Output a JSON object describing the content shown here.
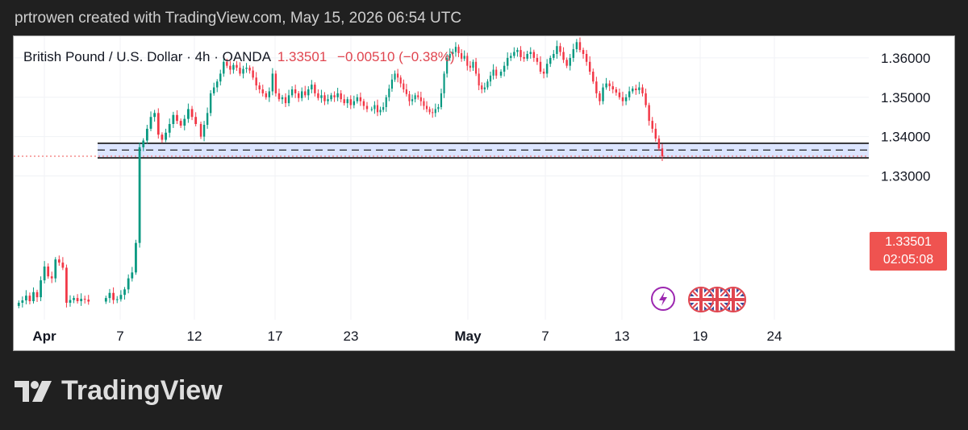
{
  "caption": "prtrowen created with TradingView.com, May 15, 2026 06:54 UTC",
  "header": {
    "symbol": "British Pound / U.S. Dollar · 4h · OANDA",
    "last_price": "1.33501",
    "change": "−0.00510 (−0.38%)"
  },
  "price_tag": {
    "price": "1.33501",
    "countdown": "02:05:08"
  },
  "brand": {
    "name": "TradingView"
  },
  "colors": {
    "up": "#089981",
    "down": "#f23645",
    "zone_fill": "#d6e0ff",
    "last_price_line": "#ef5350"
  },
  "icons": [
    "lightning-event-icon",
    "uk-flag-event-icon"
  ],
  "chart_data": {
    "type": "candlestick",
    "title": "British Pound / U.S. Dollar · 4h · OANDA",
    "ylim": [
      1.2935,
      1.3655
    ],
    "yticks": [
      "1.36000",
      "1.35000",
      "1.34000",
      "1.33000"
    ],
    "ytick_values": [
      1.36,
      1.35,
      1.34,
      1.33
    ],
    "xticks": [
      {
        "label": "Apr",
        "bold": true
      },
      {
        "label": "7",
        "bold": false
      },
      {
        "label": "12",
        "bold": false
      },
      {
        "label": "17",
        "bold": false
      },
      {
        "label": "23",
        "bold": false
      },
      {
        "label": "May",
        "bold": true
      },
      {
        "label": "7",
        "bold": false
      },
      {
        "label": "13",
        "bold": false
      },
      {
        "label": "19",
        "bold": false
      },
      {
        "label": "24",
        "bold": false
      }
    ],
    "support_zone": {
      "top": 1.3383,
      "mid": 1.3366,
      "bottom": 1.3346
    },
    "last_price": 1.33501,
    "grid": true,
    "series": [
      {
        "segment": "early-april",
        "closes": [
          1.2978,
          1.2984,
          1.2996,
          1.2982,
          1.3005,
          1.2992,
          1.3035,
          1.307,
          1.3045,
          1.304,
          1.3088,
          1.308,
          1.3067,
          1.2978,
          1.2985,
          1.299,
          1.2982,
          1.2988,
          1.2986,
          1.2981
        ]
      },
      {
        "segment": "gap-rally",
        "closes": [
          1.299,
          1.3003,
          1.2985,
          1.2987,
          1.2998,
          1.3012,
          1.304,
          1.3055,
          1.313,
          1.3373,
          1.339,
          1.342,
          1.345,
          1.346,
          1.3405,
          1.3392,
          1.341,
          1.3432,
          1.3455,
          1.344,
          1.3428,
          1.3445,
          1.347,
          1.345,
          1.3432
        ]
      },
      {
        "segment": "mid-april",
        "closes": [
          1.34,
          1.343,
          1.346,
          1.351,
          1.3525,
          1.354,
          1.356,
          1.359,
          1.358,
          1.357,
          1.3582,
          1.3575,
          1.356,
          1.3572,
          1.3575,
          1.3568,
          1.355,
          1.353,
          1.352,
          1.351,
          1.35,
          1.3515,
          1.356,
          1.351,
          1.3495,
          1.35,
          1.3485,
          1.3505,
          1.352,
          1.351,
          1.3498,
          1.3515,
          1.3505,
          1.352,
          1.3532,
          1.351,
          1.3498,
          1.3505,
          1.349,
          1.3495,
          1.3505,
          1.35,
          1.351,
          1.3495,
          1.3485,
          1.3495,
          1.348,
          1.349,
          1.35,
          1.349,
          1.3478,
          1.347
        ]
      },
      {
        "segment": "late-april",
        "closes": [
          1.347,
          1.348,
          1.3462,
          1.3468,
          1.3475,
          1.35,
          1.3522,
          1.3545,
          1.356,
          1.355,
          1.3535,
          1.352,
          1.3508,
          1.349,
          1.3495,
          1.3505,
          1.35,
          1.349,
          1.3478,
          1.347,
          1.3462,
          1.346,
          1.347,
          1.3475,
          1.351,
          1.356,
          1.36,
          1.361,
          1.3615,
          1.3628,
          1.3612,
          1.3598,
          1.3605,
          1.358,
          1.3575,
          1.359,
          1.356,
          1.353,
          1.352,
          1.3525,
          1.354,
          1.3555,
          1.357,
          1.3555
        ]
      },
      {
        "segment": "early-may",
        "closes": [
          1.3565,
          1.358,
          1.36,
          1.3605,
          1.3615,
          1.362,
          1.3602,
          1.3598,
          1.361,
          1.3615,
          1.36,
          1.359,
          1.3565,
          1.356,
          1.3585,
          1.36,
          1.361,
          1.363,
          1.3615,
          1.3595,
          1.358,
          1.36,
          1.3622,
          1.364,
          1.362,
          1.361,
          1.359,
          1.3565,
          1.354,
          1.351,
          1.349,
          1.3525,
          1.3535,
          1.3528,
          1.352,
          1.3512,
          1.35,
          1.349,
          1.35,
          1.3515,
          1.3522,
          1.3518,
          1.3525,
          1.351,
          1.348,
          1.344,
          1.342,
          1.3395,
          1.337,
          1.335
        ]
      }
    ]
  }
}
